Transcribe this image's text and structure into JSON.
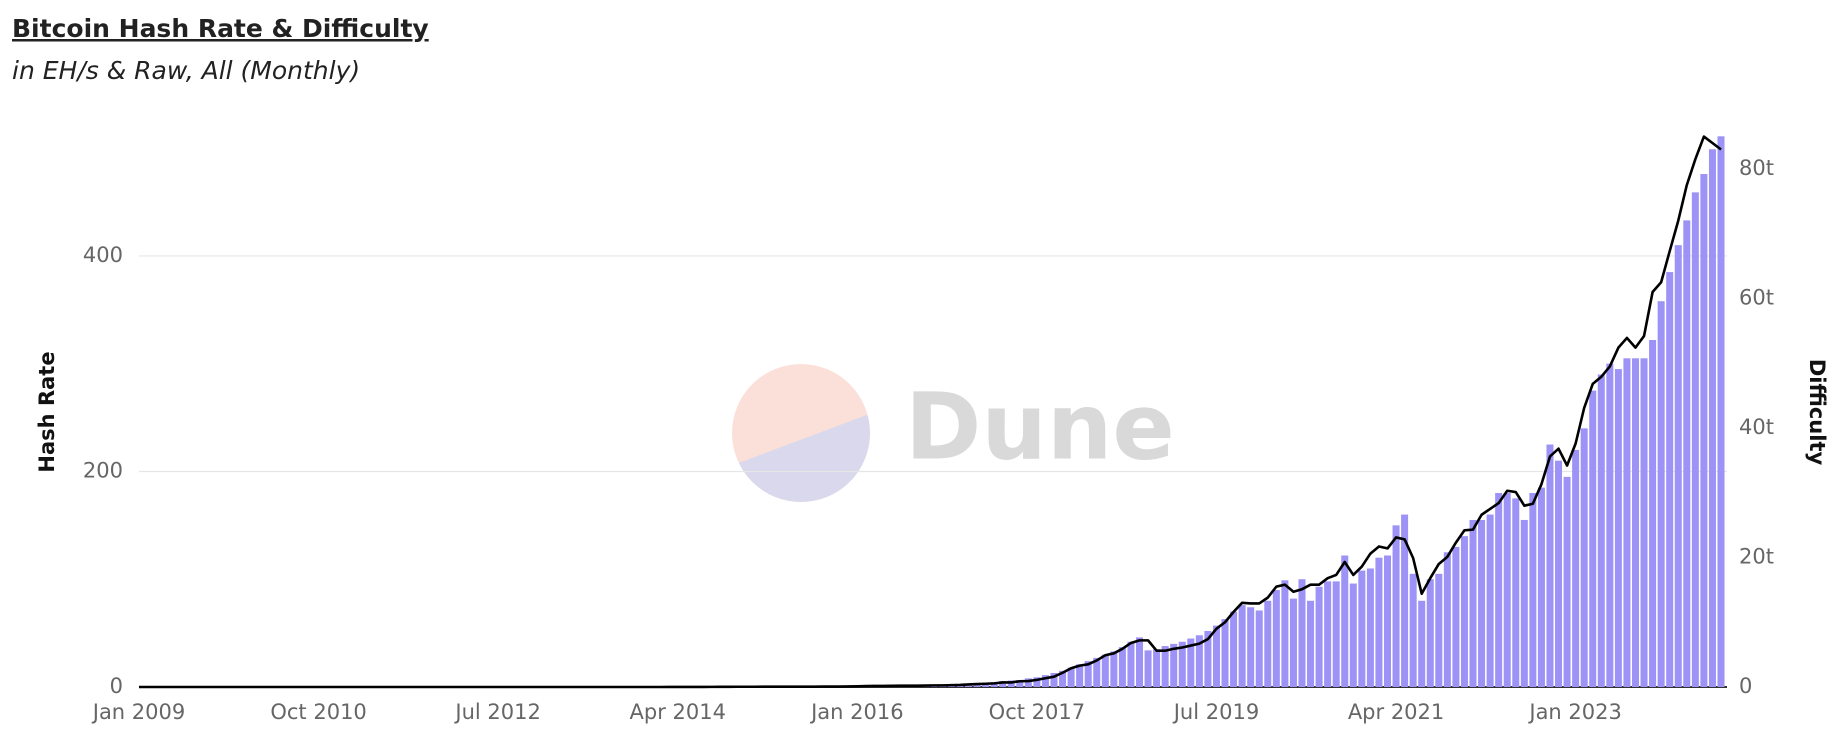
{
  "chart_data": {
    "type": "bar_line",
    "title": "Bitcoin Hash Rate & Difficulty",
    "subtitle": "in EH/s & Raw, All (Monthly)",
    "watermark": "Dune",
    "ylabel": "Hash Rate",
    "y2label": "Difficulty",
    "ylim": [
      0,
      515
    ],
    "yticks": [
      0,
      200,
      400
    ],
    "y2lim": [
      0,
      85700000000000
    ],
    "y2ticks": [
      0,
      {
        "value": 20000000000000,
        "label": "20t"
      },
      {
        "value": 40000000000000,
        "label": "40t"
      },
      {
        "value": 60000000000000,
        "label": "60t"
      },
      {
        "value": 80000000000000,
        "label": "80t"
      }
    ],
    "grid": true,
    "categories": [
      "Jan 2009",
      null,
      null,
      null,
      null,
      null,
      null,
      null,
      null,
      null,
      null,
      null,
      null,
      null,
      null,
      null,
      null,
      null,
      null,
      null,
      null,
      "Oct 2010",
      null,
      null,
      null,
      null,
      null,
      null,
      null,
      null,
      null,
      null,
      null,
      null,
      null,
      null,
      null,
      null,
      null,
      null,
      null,
      null,
      "Jul 2012",
      null,
      null,
      null,
      null,
      null,
      null,
      null,
      null,
      null,
      null,
      null,
      null,
      null,
      null,
      null,
      null,
      null,
      null,
      null,
      null,
      "Apr 2014",
      null,
      null,
      null,
      null,
      null,
      null,
      null,
      null,
      null,
      null,
      null,
      null,
      null,
      null,
      null,
      null,
      null,
      null,
      null,
      null,
      "Jan 2016",
      null,
      null,
      null,
      null,
      null,
      null,
      null,
      null,
      null,
      null,
      null,
      null,
      null,
      null,
      null,
      null,
      null,
      null,
      null,
      null,
      "Oct 2017",
      null,
      null,
      null,
      null,
      null,
      null,
      null,
      null,
      null,
      null,
      null,
      null,
      null,
      null,
      null,
      null,
      null,
      null,
      null,
      null,
      "Jul 2019",
      null,
      null,
      null,
      null,
      null,
      null,
      null,
      null,
      null,
      null,
      null,
      null,
      null,
      null,
      null,
      null,
      null,
      null,
      null,
      null,
      "Apr 2021",
      null,
      null,
      null,
      null,
      null,
      null,
      null,
      null,
      null,
      null,
      null,
      null,
      null,
      null,
      null,
      null,
      null,
      null,
      null,
      null,
      "Jan 2023",
      null,
      null,
      null,
      null,
      null,
      null,
      null,
      null,
      null,
      null,
      null,
      null,
      null,
      null,
      null,
      null,
      null
    ],
    "series": [
      {
        "name": "Hash Rate",
        "type": "bar",
        "color": "#9d92f6",
        "values": [
          0,
          0,
          0,
          0,
          0,
          0,
          0,
          0,
          0,
          0,
          0,
          0,
          0,
          0,
          0,
          0,
          0,
          0,
          0,
          0,
          0,
          0,
          0,
          0,
          0,
          0,
          0,
          0,
          0,
          0,
          0,
          0,
          0,
          0,
          0,
          0,
          0,
          0,
          0,
          0,
          0,
          0,
          0,
          0,
          0,
          0,
          0,
          0,
          2e-05,
          2e-05,
          3e-05,
          4e-05,
          6e-05,
          8e-05,
          0.0001,
          0.0002,
          0.0005,
          0.001,
          0.003,
          0.005,
          0.01,
          0.02,
          0.03,
          0.05,
          0.07,
          0.1,
          0.14,
          0.18,
          0.22,
          0.26,
          0.28,
          0.3,
          0.3,
          0.32,
          0.34,
          0.36,
          0.36,
          0.36,
          0.38,
          0.4,
          0.44,
          0.5,
          0.6,
          0.7,
          0.8,
          1.1,
          1.2,
          1.3,
          1.4,
          1.5,
          1.5,
          1.6,
          1.7,
          1.8,
          2,
          2.2,
          2.6,
          3,
          3.5,
          3.8,
          4.5,
          5.5,
          6,
          6.5,
          8,
          9,
          11,
          13,
          15,
          18,
          21,
          24,
          27,
          30,
          33,
          37,
          42,
          46,
          34,
          35,
          38,
          40,
          42,
          45,
          48,
          52,
          57,
          63,
          70,
          76,
          74,
          71,
          80,
          90,
          99,
          82,
          100,
          80,
          93,
          98,
          98,
          122,
          96,
          108,
          110,
          120,
          122,
          150,
          160,
          105,
          80,
          100,
          105,
          125,
          130,
          140,
          155,
          155,
          160,
          180,
          180,
          175,
          155,
          180,
          185,
          225,
          210,
          195,
          220,
          240,
          275,
          290,
          300,
          295,
          305,
          305,
          305,
          322,
          358,
          385,
          410,
          433,
          459,
          476,
          499,
          511
        ]
      },
      {
        "name": "Difficulty",
        "type": "line",
        "axis": "y2",
        "color": "#000000",
        "values": [
          1,
          1,
          1,
          1,
          1,
          1,
          1,
          1,
          1,
          1,
          1,
          1,
          1,
          1,
          1,
          1,
          1,
          1,
          45,
          244,
          712,
          3450,
          11300,
          14500,
          15000,
          22000,
          60000,
          92000,
          244000,
          876000,
          1560000,
          1690000,
          1780000,
          1320000,
          1090000,
          1160000,
          1250000.0,
          1500000.0,
          1600000.0,
          1690000.0,
          1730000.0,
          1730000.0,
          1870000.0,
          2440000.0,
          2690000.0,
          3100000.0,
          3370000.0,
          3440000.0,
          3400000.0,
          3700000.0,
          4400000.0,
          8000000.0,
          10500000.0,
          14800000.0,
          26000000.0,
          37000000.0,
          87000000.0,
          267000000.0,
          510000000.0,
          910000000.0,
          1420000000.0,
          2190000000.0,
          3800000000.0,
          6100000000.0,
          8900000000.0,
          11800000000.0,
          16800000000.0,
          19300000000.0,
          27000000000.0,
          35000000000.0,
          40000000000.0,
          40000000000.0,
          40000000000.0,
          45000000000.0,
          47000000000.0,
          48000000000.0,
          48000000000.0,
          47000000000.0,
          50000000000.0,
          52000000000.0,
          60000000000.0,
          62000000000.0,
          70000000000.0,
          90000000000.0,
          110000000000.0,
          140000000000.0,
          160000000000.0,
          170000000000.0,
          190000000000.0,
          200000000000.0,
          210000000000.0,
          210000000000.0,
          220000000000.0,
          250000000000.0,
          250000000000.0,
          290000000000.0,
          320000000000.0,
          390000000000.0,
          460000000000.0,
          500000000000.0,
          560000000000.0,
          710000000000.0,
          710000000000.0,
          890000000000.0,
          920000000000.0,
          1100000000000.0,
          1350000000000.0,
          1590000000000.0,
          2200000000000.0,
          2900000000000.0,
          3300000000000.0,
          3500000000000.0,
          4100000000000.0,
          4900000000000.0,
          5200000000000.0,
          5900000000000.0,
          6800000000000.0,
          7200000000000.0,
          7200000000000.0,
          5600000000000.0,
          5600000000000.0,
          5900000000000.0,
          6100000000000.0,
          6400000000000.0,
          6700000000000.0,
          7400000000000.0,
          9000000000000.0,
          10000000000000.0,
          11600000000000.0,
          13000000000000.0,
          12900000000000.0,
          12900000000000.0,
          13800000000000.0,
          15500000000000.0,
          15800000000000.0,
          14700000000000.0,
          15100000000000.0,
          15800000000000.0,
          15800000000000.0,
          16800000000000.0,
          17300000000000.0,
          19300000000000.0,
          17300000000000.0,
          18600000000000.0,
          20600000000000.0,
          21700000000000.0,
          21400000000000.0,
          23100000000000.0,
          22800000000000.0,
          19900000000000.0,
          14400000000000.0,
          16800000000000.0,
          19000000000000.0,
          20100000000000.0,
          22300000000000.0,
          24200000000000.0,
          24300000000000.0,
          26600000000000.0,
          27500000000000.0,
          28400000000000.0,
          30300000000000.0,
          30100000000000.0,
          28000000000000.0,
          28300000000000.0,
          31300000000000.0,
          35600000000000.0,
          36800000000000.0,
          34200000000000.0,
          37600000000000.0,
          43100000000000.0,
          46800000000000.0,
          47900000000000.0,
          49500000000000.0,
          52400000000000.0,
          53900000000000.0,
          52400000000000.0,
          54200000000000.0,
          61000000000000.0,
          62500000000000.0,
          67300000000000.0,
          72000000000000.0,
          77500000000000.0,
          81500000000000.0,
          85000000000000.0,
          84000000000000.0,
          83000000000000.0
        ]
      }
    ]
  }
}
